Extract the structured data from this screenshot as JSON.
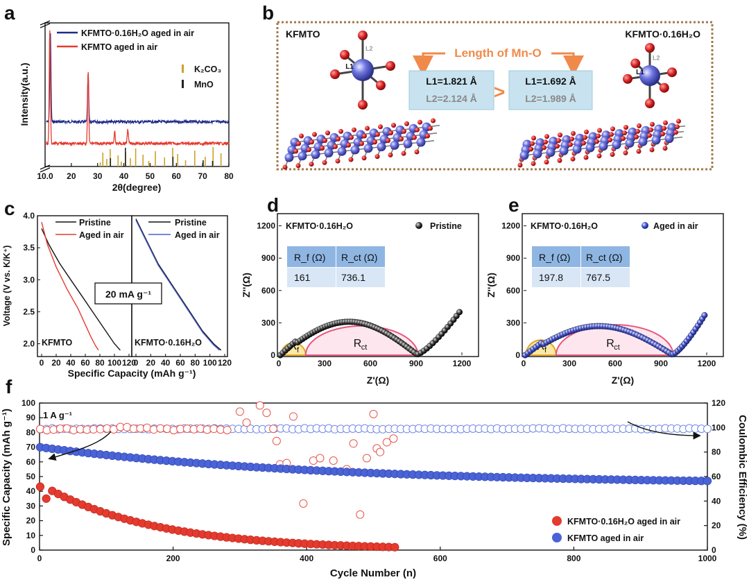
{
  "panels": {
    "a": "a",
    "b": "b",
    "c": "c",
    "d": "d",
    "e": "e",
    "f": "f"
  },
  "chart_data": [
    {
      "panel": "a",
      "type": "line",
      "title": "",
      "xlabel": "2θ(degree)",
      "ylabel": "Intensity(a.u.)",
      "xlim": [
        10,
        80
      ],
      "xticks": [
        "10.0",
        "20",
        "30",
        "40",
        "50",
        "60",
        "70",
        "80"
      ],
      "legend": [
        "KFMTO·0.16H₂O aged in air",
        "KFMTO aged in air"
      ],
      "ref_legend": [
        "K₂CO₃",
        "MnO"
      ],
      "series_colors": [
        "#1f2a8a",
        "#e53a2e"
      ],
      "ref_colors": [
        "#c9a227",
        "#222222"
      ],
      "series": [
        {
          "name": "KFMTO·0.16H₂O aged in air",
          "peaks": [
            {
              "x": 12.0,
              "h": 0.95
            },
            {
              "x": 26.4,
              "h": 0.5
            }
          ],
          "baseline": 0.52
        },
        {
          "name": "KFMTO aged in air",
          "peaks": [
            {
              "x": 11.8,
              "h": 0.98
            },
            {
              "x": 26.4,
              "h": 0.62
            },
            {
              "x": 36.5,
              "h": 0.1
            },
            {
              "x": 41.5,
              "h": 0.12
            }
          ],
          "baseline": 0.26
        }
      ],
      "ref_peaks": {
        "K2CO3": [
          31.0,
          32.0,
          33.5,
          34.8,
          37.8,
          39.0,
          40.7,
          42.5,
          44.5,
          47.3,
          49.5,
          52.0,
          55.5,
          58.6,
          60.5,
          63.5,
          67.0,
          71.0,
          74.0,
          77.0
        ],
        "MnO": [
          34.9,
          40.6,
          58.7,
          70.2,
          73.8
        ]
      }
    },
    {
      "panel": "c",
      "type": "line",
      "xlabel": "Specific Capacity (mAh g⁻¹)",
      "ylabel": "Voltage (V vs. K/K⁺)",
      "ylim": [
        1.8,
        4.0
      ],
      "yticks": [
        "2.0",
        "2.5",
        "3.0",
        "3.5",
        "4.0"
      ],
      "xticks": [
        "0",
        "20",
        "40",
        "60",
        "80",
        "100",
        "120"
      ],
      "rate_label": "20 mA g⁻¹",
      "subplots": [
        {
          "name": "KFMTO",
          "legend": [
            "Pristine",
            "Aged in air"
          ],
          "series": [
            {
              "name": "Pristine",
              "color": "#111111",
              "x": [
                0,
                10,
                25,
                40,
                55,
                70,
                85,
                100,
                108
              ],
              "y": [
                3.8,
                3.55,
                3.25,
                3.0,
                2.75,
                2.5,
                2.25,
                2.0,
                1.9
              ]
            },
            {
              "name": "Aged in air",
              "color": "#e53a2e",
              "x": [
                0,
                8,
                20,
                35,
                50,
                60,
                68,
                74,
                78
              ],
              "y": [
                3.9,
                3.55,
                3.2,
                2.85,
                2.55,
                2.3,
                2.1,
                1.97,
                1.9
              ]
            }
          ]
        },
        {
          "name": "KFMTO·0.16H₂O",
          "legend": [
            "Pristine",
            "Aged in air"
          ],
          "series": [
            {
              "name": "Pristine",
              "color": "#111111",
              "x": [
                0,
                15,
                30,
                50,
                70,
                90,
                105,
                115
              ],
              "y": [
                3.95,
                3.6,
                3.25,
                2.9,
                2.55,
                2.2,
                2.0,
                1.9
              ]
            },
            {
              "name": "Aged in air",
              "color": "#4a5fd0",
              "x": [
                0,
                15,
                30,
                50,
                70,
                90,
                105,
                113
              ],
              "y": [
                3.93,
                3.58,
                3.23,
                2.88,
                2.53,
                2.18,
                1.98,
                1.9
              ]
            }
          ]
        }
      ]
    },
    {
      "panel": "d",
      "type": "scatter",
      "title": "KFMTO·0.16H₂O",
      "xlabel": "Z'(Ω)",
      "ylabel": "Z''(Ω)",
      "xlim": [
        0,
        1300
      ],
      "ylim": [
        0,
        1300
      ],
      "xticks": [
        "0",
        "300",
        "600",
        "900",
        "1200"
      ],
      "yticks": [
        "0",
        "300",
        "600",
        "900",
        "1200"
      ],
      "legend": [
        "Pristine"
      ],
      "table": {
        "headers": [
          "R_f (Ω)",
          "R_ct (Ω)"
        ],
        "values": [
          "161",
          "736.1"
        ]
      },
      "Rf": 161,
      "Rct": 736.1
    },
    {
      "panel": "e",
      "type": "scatter",
      "title": "KFMTO·0.16H₂O",
      "xlabel": "Z'(Ω)",
      "ylabel": "Z''(Ω)",
      "xlim": [
        0,
        1300
      ],
      "ylim": [
        0,
        1300
      ],
      "xticks": [
        "0",
        "300",
        "600",
        "900",
        "1200"
      ],
      "yticks": [
        "0",
        "300",
        "600",
        "900",
        "1200"
      ],
      "legend": [
        "Aged in air"
      ],
      "table": {
        "headers": [
          "R_f (Ω)",
          "R_ct (Ω)"
        ],
        "values": [
          "197.8",
          "767.5"
        ]
      },
      "Rf": 197.8,
      "Rct": 767.5
    },
    {
      "panel": "f",
      "type": "scatter",
      "xlabel": "Cycle Number (n)",
      "ylabel": "Specific Capacity (mAh g⁻¹)",
      "y2label": "Coulombic Efficiency (%)",
      "rate_label": "1 A g⁻¹",
      "xlim": [
        0,
        1000
      ],
      "ylim": [
        0,
        100
      ],
      "y2lim": [
        0,
        120
      ],
      "xticks": [
        "0",
        "200",
        "400",
        "600",
        "800",
        "1000"
      ],
      "yticks": [
        "0",
        "10",
        "20",
        "30",
        "40",
        "50",
        "60",
        "70",
        "80",
        "90",
        "100"
      ],
      "y2ticks": [
        "0",
        "20",
        "40",
        "60",
        "80",
        "100",
        "120"
      ],
      "legend": [
        "KFMTO·0.16H₂O aged in air",
        "KFMTO aged in air"
      ],
      "series": [
        {
          "name": "KFMTO aged in air",
          "color": "#4a63d6",
          "capacity_start": 70,
          "capacity_end": 47,
          "ce": 99
        },
        {
          "name": "KFMTO·0.16H₂O aged in air",
          "color": "#e53a2e",
          "capacity_start": 45,
          "capacity_end": 1,
          "last_cycle": 540,
          "ce_outliers": [
            [
              300,
              113
            ],
            [
              310,
              104
            ],
            [
              330,
              118
            ],
            [
              340,
              112
            ],
            [
              350,
              99
            ],
            [
              355,
              89
            ],
            [
              360,
              70
            ],
            [
              370,
              71
            ],
            [
              380,
              109
            ],
            [
              395,
              38
            ],
            [
              410,
              73
            ],
            [
              420,
              75
            ],
            [
              440,
              73
            ],
            [
              460,
              66
            ],
            [
              470,
              87
            ],
            [
              480,
              29
            ],
            [
              490,
              75
            ],
            [
              500,
              111
            ],
            [
              505,
              83
            ],
            [
              510,
              80
            ],
            [
              520,
              88
            ],
            [
              530,
              91
            ]
          ]
        }
      ]
    }
  ],
  "schematic": {
    "left_title": "KFMTO",
    "right_title": "KFMTO·0.16H₂O",
    "center_title": "Length of Mn-O",
    "left_box": {
      "l1": "L1=1.821 Å",
      "l2": "L2=2.124 Å"
    },
    "right_box": {
      "l1": "L1=1.692 Å",
      "l2": "L2=1.989 Å"
    },
    "compare": ">",
    "bond_labels": [
      "L1",
      "L2"
    ],
    "colors": {
      "mn": "#4b52c8",
      "o": "#d42020",
      "frame": "#a0794a",
      "box": "#c8e3ef",
      "arrow": "#f08a4b"
    }
  },
  "eis_labels": {
    "rf": "R",
    "rf_sub": "f",
    "rct": "R",
    "rct_sub": "ct"
  }
}
